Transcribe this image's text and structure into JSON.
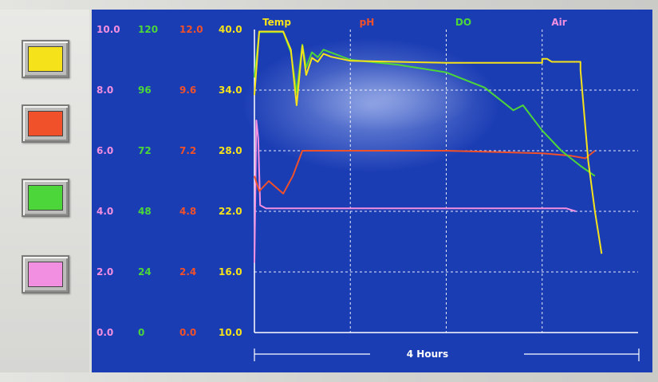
{
  "colors": {
    "temp": "#f6e21a",
    "ph": "#f0502a",
    "do": "#4cd63a",
    "air": "#f28fe0",
    "screen": "#1b3db4",
    "grid": "#ffffff"
  },
  "swatches": [
    {
      "series": "Temp",
      "color": "#f6e21a"
    },
    {
      "series": "pH",
      "color": "#f0502a"
    },
    {
      "series": "DO",
      "color": "#4cd63a"
    },
    {
      "series": "Air",
      "color": "#f28fe0"
    }
  ],
  "chart_data": {
    "type": "line",
    "title": "",
    "xlabel": "4 Hours",
    "xlim": [
      0,
      4
    ],
    "grid": true,
    "legend_placement": "top",
    "axes": [
      {
        "series": "Air",
        "ticks": [
          "10.0",
          "8.0",
          "6.0",
          "4.0",
          "2.0",
          "0.0"
        ],
        "range": [
          0,
          10
        ]
      },
      {
        "series": "DO",
        "ticks": [
          "120",
          "96",
          "72",
          "48",
          "24",
          "0"
        ],
        "range": [
          0,
          120
        ]
      },
      {
        "series": "pH",
        "ticks": [
          "12.0",
          "9.6",
          "7.2",
          "4.8",
          "2.4",
          "0.0"
        ],
        "range": [
          0,
          12
        ]
      },
      {
        "series": "Temp",
        "ticks": [
          "40.0",
          "34.0",
          "28.0",
          "22.0",
          "16.0",
          "10.0"
        ],
        "range": [
          10,
          40
        ]
      }
    ],
    "legend": [
      "Temp",
      "pH",
      "DO",
      "Air"
    ],
    "series": [
      {
        "name": "Temp",
        "axis": "Temp",
        "x": [
          0,
          0.05,
          0.3,
          0.38,
          0.44,
          0.5,
          0.54,
          0.6,
          0.66,
          0.72,
          0.8,
          1.0,
          2.0,
          3.0,
          3.0,
          3.05,
          3.1,
          3.4,
          3.4,
          3.48,
          3.55,
          3.62
        ],
        "y": [
          33.5,
          39.8,
          39.8,
          38.0,
          32.5,
          38.4,
          35.5,
          37.2,
          36.8,
          37.6,
          37.3,
          36.9,
          36.7,
          36.7,
          37.1,
          37.1,
          36.8,
          36.8,
          36.0,
          27.0,
          22.0,
          17.8
        ]
      },
      {
        "name": "pH",
        "axis": "pH",
        "x": [
          0,
          0.05,
          0.15,
          0.3,
          0.4,
          0.5,
          1.0,
          2.0,
          3.0,
          3.3,
          3.45,
          3.55
        ],
        "y": [
          6.2,
          5.6,
          6.0,
          5.5,
          6.2,
          7.2,
          7.2,
          7.2,
          7.1,
          7.0,
          6.9,
          7.2
        ]
      },
      {
        "name": "DO",
        "axis": "DO",
        "x": [
          0,
          0.05,
          0.3,
          0.38,
          0.44,
          0.5,
          0.54,
          0.6,
          0.66,
          0.72,
          1.0,
          1.5,
          2.0,
          2.4,
          2.7,
          2.8,
          3.0,
          3.2,
          3.4,
          3.55
        ],
        "y": [
          101,
          119,
          119,
          111,
          95,
          114,
          105,
          111,
          109,
          112,
          108,
          106,
          103,
          97,
          88,
          90,
          80,
          72,
          66,
          62
        ]
      },
      {
        "name": "Air",
        "axis": "Air",
        "x": [
          0,
          0.02,
          0.04,
          0.06,
          0.12,
          0.2,
          1.0,
          2.0,
          3.0,
          3.15,
          3.25,
          3.35
        ],
        "y": [
          2.3,
          7.0,
          6.4,
          4.2,
          4.1,
          4.1,
          4.1,
          4.1,
          4.1,
          4.1,
          4.1,
          4.0
        ]
      }
    ]
  }
}
